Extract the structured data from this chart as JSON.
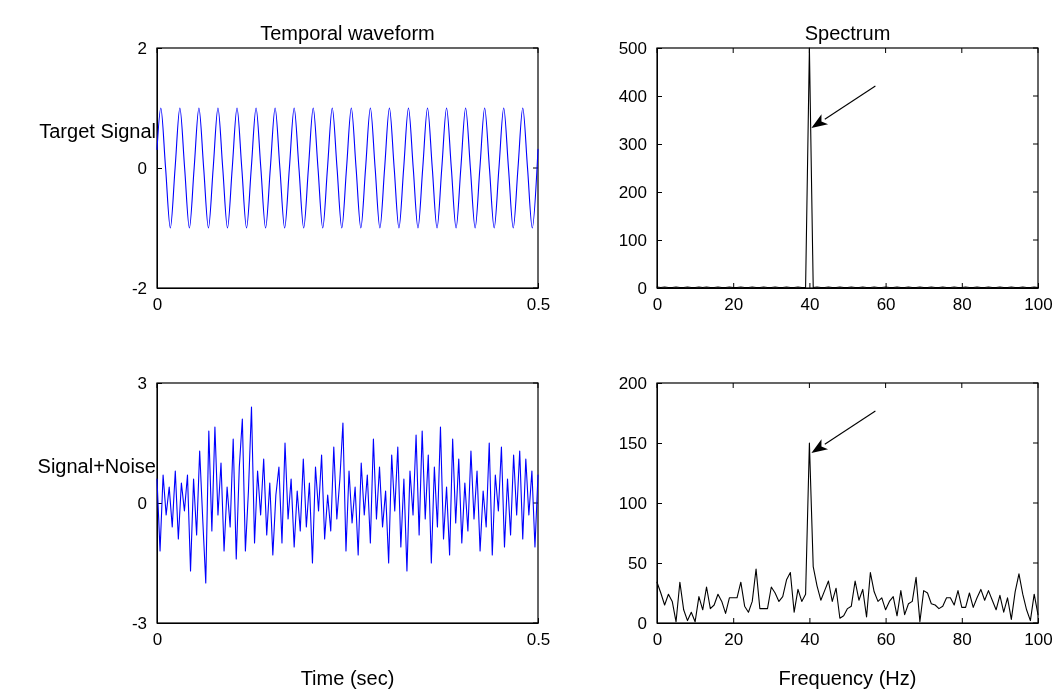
{
  "chart_data": [
    {
      "type": "line",
      "title": "Temporal waveform",
      "ylabel": "Target Signal",
      "xlim": [
        0,
        0.5
      ],
      "ylim": [
        -2,
        2
      ],
      "xticks": [
        0,
        0.5
      ],
      "yticks": [
        -2,
        0,
        2
      ],
      "series": [
        {
          "color": "#0000ff",
          "x": [
            0,
            0.005,
            0.01125,
            0.0175,
            0.02375,
            0.03,
            0.03625,
            0.0425,
            0.04875,
            0.055,
            0.06125,
            0.0675,
            0.07375,
            0.08,
            0.08625,
            0.0925,
            0.09875,
            0.105,
            0.11125,
            0.1175,
            0.12375,
            0.13,
            0.13625,
            0.1425,
            0.14875,
            0.155,
            0.16125,
            0.1675,
            0.17375,
            0.18,
            0.18625,
            0.1925,
            0.19875,
            0.205,
            0.21125,
            0.2175,
            0.22375,
            0.23,
            0.23625,
            0.2425,
            0.24875,
            0.255,
            0.26125,
            0.2675,
            0.27375,
            0.28,
            0.28625,
            0.2925,
            0.29875,
            0.305,
            0.31125,
            0.3175,
            0.32375,
            0.33,
            0.33625,
            0.3425,
            0.34875,
            0.355,
            0.36125,
            0.3675,
            0.37375,
            0.38,
            0.38625,
            0.3925,
            0.39875,
            0.405,
            0.41125,
            0.4175,
            0.42375,
            0.43,
            0.43625,
            0.4425,
            0.44875,
            0.455,
            0.46125,
            0.4675,
            0.47375,
            0.48,
            0.48625,
            0.4925,
            0.49875,
            0.5
          ],
          "values": [
            0.31,
            1,
            0,
            -1,
            0,
            1,
            0,
            -1,
            0,
            1,
            0,
            -1,
            0,
            1,
            0,
            -1,
            0,
            1,
            0,
            -1,
            0,
            1,
            0,
            -1,
            0,
            1,
            0,
            -1,
            0,
            1,
            0,
            -1,
            0,
            1,
            0,
            -1,
            0,
            1,
            0,
            -1,
            0,
            1,
            0,
            -1,
            0,
            1,
            0,
            -1,
            0,
            1,
            0,
            -1,
            0,
            1,
            0,
            -1,
            0,
            1,
            0,
            -1,
            0,
            1,
            0,
            -1,
            0,
            1,
            0,
            -1,
            0,
            1,
            0,
            -1,
            0,
            1,
            0,
            -1,
            0,
            1,
            0,
            -1,
            0,
            0.31
          ]
        }
      ]
    },
    {
      "type": "line",
      "title": "Spectrum",
      "xlim": [
        0,
        100
      ],
      "ylim": [
        0,
        500
      ],
      "xticks": [
        0,
        20,
        40,
        60,
        80,
        100
      ],
      "yticks": [
        0,
        100,
        200,
        300,
        400,
        500
      ],
      "series": [
        {
          "color": "#000000",
          "x": [
            0,
            1,
            2,
            3,
            4,
            5,
            6,
            7,
            8,
            9,
            10,
            11,
            12,
            13,
            14,
            15,
            16,
            17,
            18,
            19,
            20,
            21,
            22,
            23,
            24,
            25,
            26,
            27,
            28,
            29,
            30,
            31,
            32,
            33,
            34,
            35,
            36,
            37,
            38,
            39,
            40,
            41,
            42,
            43,
            44,
            45,
            46,
            47,
            48,
            49,
            50,
            51,
            52,
            53,
            54,
            55,
            56,
            57,
            58,
            59,
            60,
            61,
            62,
            63,
            64,
            65,
            66,
            67,
            68,
            69,
            70,
            71,
            72,
            73,
            74,
            75,
            76,
            77,
            78,
            79,
            80,
            81,
            82,
            83,
            84,
            85,
            86,
            87,
            88,
            89,
            90,
            91,
            92,
            93,
            94,
            95,
            96,
            97,
            98,
            99,
            100
          ],
          "values": [
            2,
            1,
            2,
            1,
            1,
            2,
            1,
            1,
            2,
            1,
            1,
            2,
            1,
            2,
            1,
            1,
            2,
            1,
            1,
            2,
            1,
            1,
            2,
            1,
            1,
            2,
            1,
            1,
            2,
            1,
            1,
            2,
            1,
            1,
            2,
            1,
            1,
            2,
            1,
            1,
            500,
            1,
            2,
            1,
            1,
            2,
            1,
            1,
            2,
            1,
            1,
            2,
            1,
            1,
            2,
            1,
            1,
            2,
            1,
            1,
            2,
            1,
            1,
            2,
            1,
            1,
            2,
            1,
            1,
            2,
            1,
            1,
            2,
            1,
            1,
            2,
            1,
            1,
            2,
            1,
            1,
            2,
            1,
            1,
            2,
            1,
            1,
            2,
            1,
            1,
            2,
            1,
            1,
            2,
            1,
            1,
            2,
            1,
            1,
            2,
            1
          ]
        }
      ]
    },
    {
      "type": "line",
      "ylabel": "Signal+Noise",
      "xlabel": "Time (sec)",
      "xlim": [
        0,
        0.5
      ],
      "ylim": [
        -3,
        3
      ],
      "xticks": [
        0,
        0.5
      ],
      "yticks": [
        -3,
        0,
        3
      ],
      "series": [
        {
          "color": "#0000ff",
          "x": [
            0,
            0.004,
            0.008,
            0.012,
            0.016,
            0.02,
            0.024,
            0.028,
            0.032,
            0.036,
            0.04,
            0.044,
            0.048,
            0.052,
            0.056,
            0.06,
            0.064,
            0.068,
            0.072,
            0.076,
            0.08,
            0.084,
            0.088,
            0.092,
            0.096,
            0.1,
            0.104,
            0.108,
            0.112,
            0.116,
            0.12,
            0.124,
            0.128,
            0.132,
            0.136,
            0.14,
            0.144,
            0.148,
            0.152,
            0.156,
            0.16,
            0.164,
            0.168,
            0.172,
            0.176,
            0.18,
            0.184,
            0.188,
            0.192,
            0.196,
            0.2,
            0.204,
            0.208,
            0.212,
            0.216,
            0.22,
            0.224,
            0.228,
            0.232,
            0.236,
            0.24,
            0.244,
            0.248,
            0.252,
            0.256,
            0.26,
            0.264,
            0.268,
            0.272,
            0.276,
            0.28,
            0.284,
            0.288,
            0.292,
            0.296,
            0.3,
            0.304,
            0.308,
            0.312,
            0.316,
            0.32,
            0.324,
            0.328,
            0.332,
            0.336,
            0.34,
            0.344,
            0.348,
            0.352,
            0.356,
            0.36,
            0.364,
            0.368,
            0.372,
            0.376,
            0.38,
            0.384,
            0.388,
            0.392,
            0.396,
            0.4,
            0.404,
            0.408,
            0.412,
            0.416,
            0.42,
            0.424,
            0.428,
            0.432,
            0.436,
            0.44,
            0.444,
            0.448,
            0.452,
            0.456,
            0.46,
            0.464,
            0.468,
            0.472,
            0.476,
            0.48,
            0.484,
            0.488,
            0.492,
            0.496,
            0.5
          ],
          "values": [
            0.6,
            -1.2,
            0.7,
            -0.3,
            0.4,
            -0.6,
            0.8,
            -0.9,
            0.5,
            -0.2,
            0.7,
            -1.7,
            0.6,
            -0.8,
            1.3,
            -0.4,
            -2.0,
            1.8,
            -0.7,
            1.9,
            -0.3,
            1.0,
            -1.2,
            0.4,
            -0.6,
            1.6,
            -1.4,
            0.9,
            2.1,
            -1.2,
            0.3,
            2.4,
            -1.0,
            0.8,
            -0.3,
            1.1,
            -0.8,
            0.5,
            -1.3,
            0.2,
            0.9,
            -1.0,
            1.5,
            -0.4,
            0.6,
            -1.1,
            0.3,
            -0.7,
            1.1,
            -0.6,
            0.5,
            -1.5,
            0.9,
            -0.2,
            1.2,
            -0.9,
            0.2,
            -0.7,
            1.4,
            -0.4,
            0.6,
            2.0,
            -1.2,
            0.8,
            -0.5,
            0.4,
            -1.3,
            1.0,
            -0.3,
            0.7,
            -1.0,
            1.6,
            -0.4,
            0.9,
            -0.6,
            0.3,
            -1.5,
            1.2,
            -0.2,
            1.4,
            -1.1,
            0.6,
            -1.7,
            0.8,
            -0.3,
            1.7,
            -0.8,
            1.8,
            -0.4,
            1.2,
            -1.5,
            0.9,
            -0.6,
            1.9,
            -0.9,
            0.4,
            -1.3,
            1.6,
            -0.5,
            1.1,
            -1.0,
            0.5,
            -0.7,
            1.3,
            -0.4,
            0.8,
            -1.2,
            0.3,
            -0.6,
            1.5,
            -1.3,
            0.7,
            -0.2,
            1.4,
            -1.1,
            0.6,
            -0.8,
            1.2,
            -0.3,
            1.3,
            -0.9,
            1.1,
            -0.3,
            0.8,
            -1.1,
            0.7
          ]
        }
      ]
    },
    {
      "type": "line",
      "xlabel": "Frequency (Hz)",
      "xlim": [
        0,
        100
      ],
      "ylim": [
        0,
        200
      ],
      "xticks": [
        0,
        20,
        40,
        60,
        80,
        100
      ],
      "yticks": [
        0,
        50,
        100,
        150,
        200
      ],
      "series": [
        {
          "color": "#000000",
          "x": [
            0,
            1,
            2,
            3,
            4,
            5,
            6,
            7,
            8,
            9,
            10,
            11,
            12,
            13,
            14,
            15,
            16,
            17,
            18,
            19,
            20,
            21,
            22,
            23,
            24,
            25,
            26,
            27,
            28,
            29,
            30,
            31,
            32,
            33,
            34,
            35,
            36,
            37,
            38,
            39,
            40,
            41,
            42,
            43,
            44,
            45,
            46,
            47,
            48,
            49,
            50,
            51,
            52,
            53,
            54,
            55,
            56,
            57,
            58,
            59,
            60,
            61,
            62,
            63,
            64,
            65,
            66,
            67,
            68,
            69,
            70,
            71,
            72,
            73,
            74,
            75,
            76,
            77,
            78,
            79,
            80,
            81,
            82,
            83,
            84,
            85,
            86,
            87,
            88,
            89,
            90,
            91,
            92,
            93,
            94,
            95,
            96,
            97,
            98,
            99,
            100
          ],
          "values": [
            34,
            25,
            15,
            24,
            18,
            1,
            34,
            11,
            2,
            9,
            1,
            22,
            11,
            30,
            12,
            15,
            24,
            18,
            8,
            21,
            21,
            21,
            34,
            14,
            9,
            18,
            45,
            12,
            12,
            12,
            30,
            25,
            18,
            22,
            36,
            42,
            9,
            28,
            18,
            24,
            150,
            47,
            31,
            19,
            27,
            35,
            18,
            29,
            4,
            6,
            12,
            14,
            35,
            19,
            28,
            5,
            42,
            26,
            18,
            21,
            11,
            18,
            22,
            6,
            27,
            7,
            16,
            18,
            38,
            1,
            27,
            25,
            16,
            15,
            12,
            14,
            21,
            21,
            15,
            27,
            13,
            13,
            25,
            13,
            21,
            28,
            19,
            27,
            19,
            11,
            23,
            9,
            21,
            3,
            26,
            41,
            24,
            11,
            2,
            24,
            7
          ]
        }
      ]
    }
  ]
}
